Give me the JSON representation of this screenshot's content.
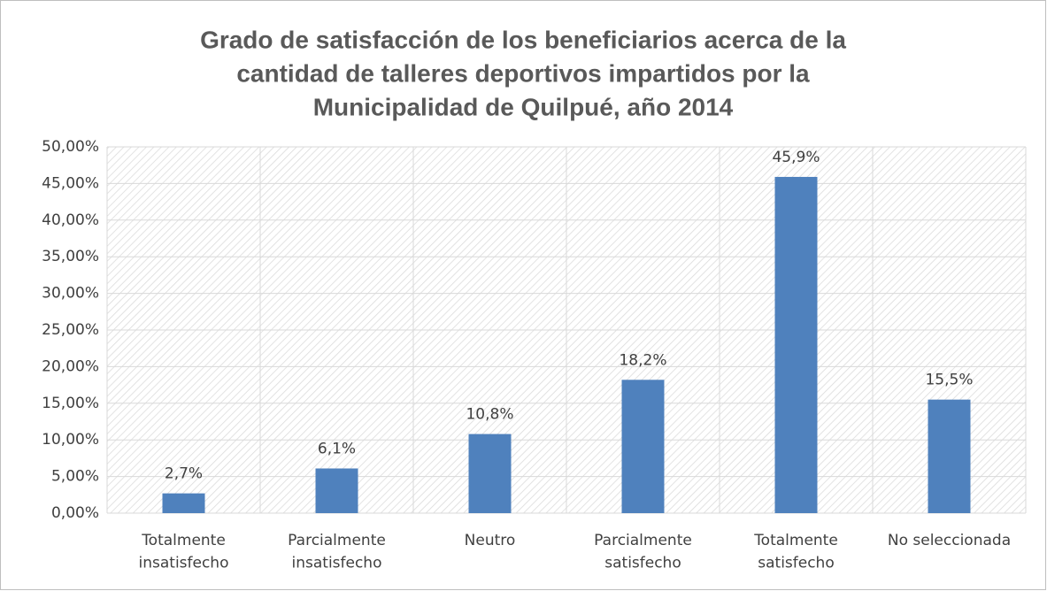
{
  "chart_data": {
    "type": "bar",
    "title": [
      "Grado de satisfacción de los beneficiarios acerca de la",
      "cantidad de talleres deportivos impartidos por la",
      "Municipalidad de Quilpué, año 2014"
    ],
    "categories": [
      "Totalmente insatisfecho",
      "Parcialmente insatisfecho",
      "Neutro",
      "Parcialmente satisfecho",
      "Totalmente satisfecho",
      "No seleccionada"
    ],
    "values": [
      2.7,
      6.1,
      10.8,
      18.2,
      45.9,
      15.5
    ],
    "value_labels": [
      "2,7%",
      "6,1%",
      "10,8%",
      "18,2%",
      "45,9%",
      "15,5%"
    ],
    "color": "#4f81bd",
    "ylim": [
      0,
      50
    ],
    "yticks": [
      {
        "value": 0,
        "label": "0,00%"
      },
      {
        "value": 5,
        "label": "5,00%"
      },
      {
        "value": 10,
        "label": "10,00%"
      },
      {
        "value": 15,
        "label": "15,00%"
      },
      {
        "value": 20,
        "label": "20,00%"
      },
      {
        "value": 25,
        "label": "25,00%"
      },
      {
        "value": 30,
        "label": "30,00%"
      },
      {
        "value": 35,
        "label": "35,00%"
      },
      {
        "value": 40,
        "label": "40,00%"
      },
      {
        "value": 45,
        "label": "45,00%"
      },
      {
        "value": 50,
        "label": "50,00%"
      }
    ],
    "grid": true
  }
}
